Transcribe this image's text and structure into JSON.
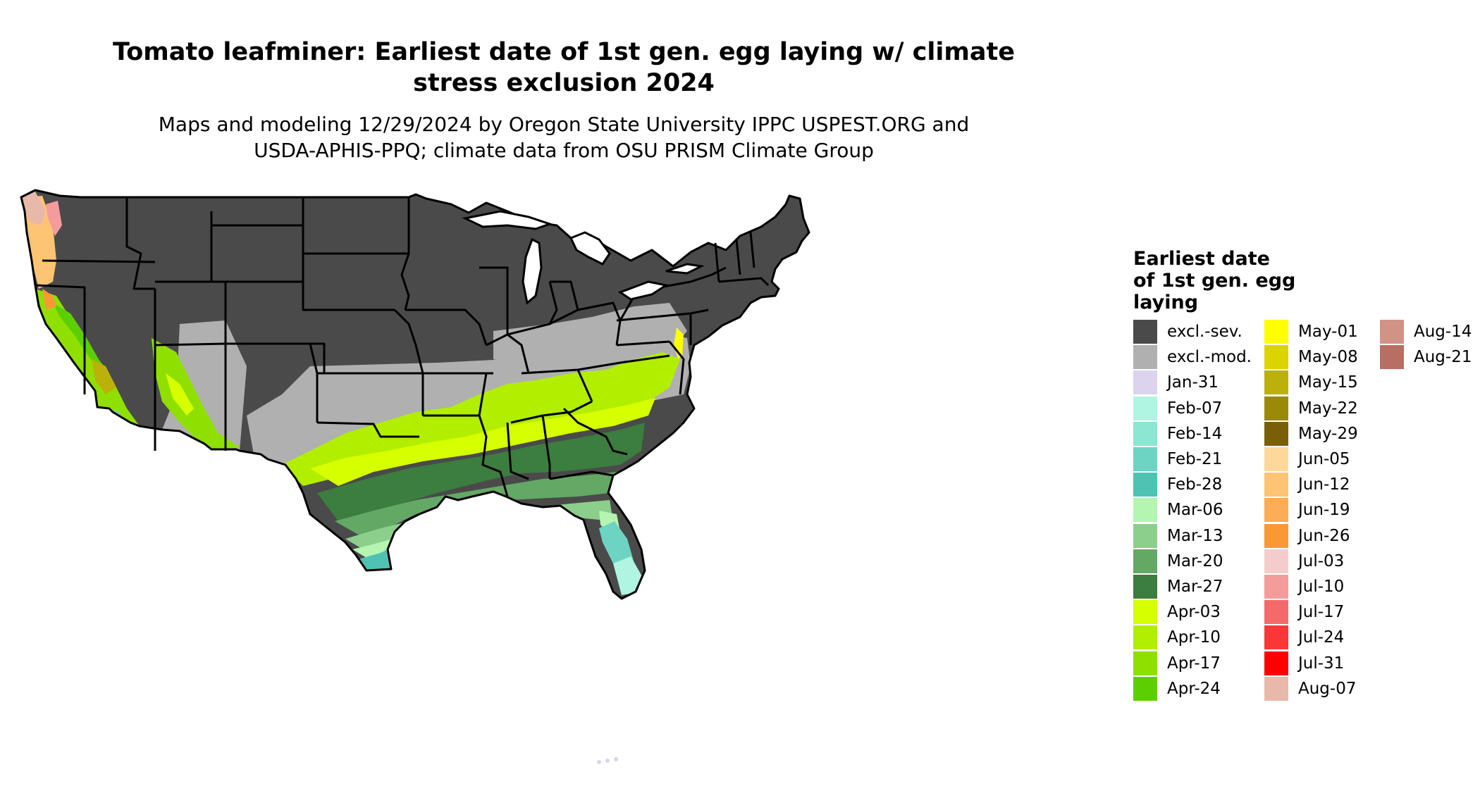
{
  "title": {
    "line1": "Tomato leafminer: Earliest date of 1st gen. egg laying w/ climate",
    "line2": "stress exclusion 2024"
  },
  "subtitle": {
    "line1": "Maps and modeling 12/29/2024 by Oregon State University IPPC USPEST.ORG and",
    "line2": "USDA-APHIS-PPQ; climate data from OSU PRISM Climate Group"
  },
  "legend": {
    "title_lines": [
      "Earliest date",
      "of 1st gen. egg",
      "laying"
    ],
    "columns": [
      [
        {
          "label": "excl.-sev.",
          "color": "#4a4a4a"
        },
        {
          "label": "excl.-mod.",
          "color": "#b0b0b0"
        },
        {
          "label": "Jan-31",
          "color": "#dcd3ee"
        },
        {
          "label": "Feb-07",
          "color": "#aff5e2"
        },
        {
          "label": "Feb-14",
          "color": "#8de6d2"
        },
        {
          "label": "Feb-21",
          "color": "#6dd4c3"
        },
        {
          "label": "Feb-28",
          "color": "#4fc2b4"
        },
        {
          "label": "Mar-06",
          "color": "#b4f5b2"
        },
        {
          "label": "Mar-13",
          "color": "#8ccf8c"
        },
        {
          "label": "Mar-20",
          "color": "#63a865"
        },
        {
          "label": "Mar-27",
          "color": "#3c7d40"
        },
        {
          "label": "Apr-03",
          "color": "#d6ff00"
        },
        {
          "label": "Apr-10",
          "color": "#b2ee00"
        },
        {
          "label": "Apr-17",
          "color": "#8fe000"
        },
        {
          "label": "Apr-24",
          "color": "#5ccf00"
        }
      ],
      [
        {
          "label": "May-01",
          "color": "#ffff00"
        },
        {
          "label": "May-08",
          "color": "#dcd400"
        },
        {
          "label": "May-15",
          "color": "#bcb10a"
        },
        {
          "label": "May-22",
          "color": "#9a8a08"
        },
        {
          "label": "May-29",
          "color": "#7a5e08"
        },
        {
          "label": "Jun-05",
          "color": "#fed89a"
        },
        {
          "label": "Jun-12",
          "color": "#fdc474"
        },
        {
          "label": "Jun-19",
          "color": "#fcad55"
        },
        {
          "label": "Jun-26",
          "color": "#fb9836"
        },
        {
          "label": "Jul-03",
          "color": "#f4cccc"
        },
        {
          "label": "Jul-10",
          "color": "#f49c9c"
        },
        {
          "label": "Jul-17",
          "color": "#f46a6a"
        },
        {
          "label": "Jul-24",
          "color": "#fa3636"
        },
        {
          "label": "Jul-31",
          "color": "#ff0000"
        },
        {
          "label": "Aug-07",
          "color": "#e8b9ab"
        }
      ],
      [
        {
          "label": "Aug-14",
          "color": "#d09385"
        },
        {
          "label": "Aug-21",
          "color": "#b66f62"
        }
      ]
    ]
  }
}
